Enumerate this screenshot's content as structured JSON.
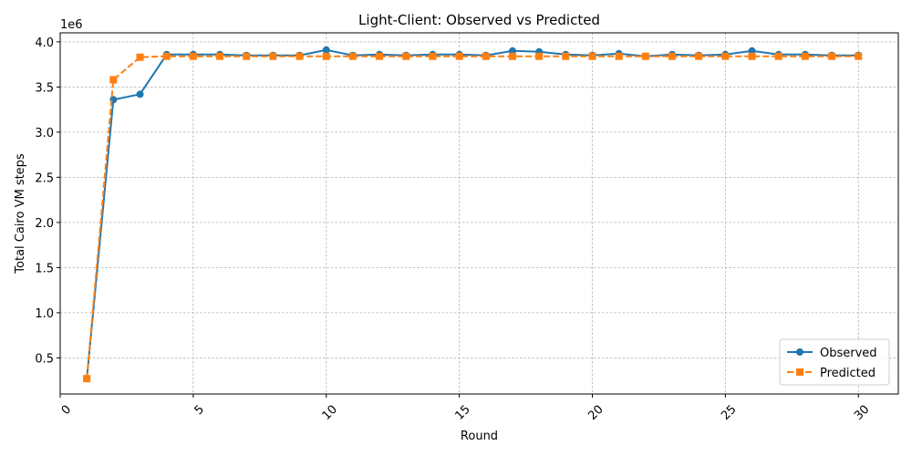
{
  "chart_data": {
    "type": "line",
    "title": "Light-Client: Observed vs Predicted",
    "xlabel": "Round",
    "ylabel": "Total Cairo VM steps",
    "y_offset_label": "1e6",
    "xlim": [
      0,
      31.5
    ],
    "ylim": [
      0.1,
      4.1
    ],
    "y_scale_factor": 1000000,
    "x_ticks": [
      0,
      5,
      10,
      15,
      20,
      25,
      30
    ],
    "y_ticks": [
      0.5,
      1.0,
      1.5,
      2.0,
      2.5,
      3.0,
      3.5,
      4.0
    ],
    "y_tick_labels": [
      "0.5",
      "1.0",
      "1.5",
      "2.0",
      "2.5",
      "3.0",
      "3.5",
      "4.0"
    ],
    "x_tick_rotation_deg": 45,
    "grid": true,
    "legend_position": "lower-right",
    "x": [
      1,
      2,
      3,
      4,
      5,
      6,
      7,
      8,
      9,
      10,
      11,
      12,
      13,
      14,
      15,
      16,
      17,
      18,
      19,
      20,
      21,
      22,
      23,
      24,
      25,
      26,
      27,
      28,
      29,
      30
    ],
    "series": [
      {
        "name": "Observed",
        "color": "#1f77b4",
        "linestyle": "solid",
        "marker": "circle",
        "values": [
          0.27,
          3.36,
          3.42,
          3.86,
          3.86,
          3.86,
          3.85,
          3.85,
          3.85,
          3.91,
          3.85,
          3.86,
          3.85,
          3.86,
          3.86,
          3.85,
          3.9,
          3.89,
          3.86,
          3.85,
          3.87,
          3.84,
          3.86,
          3.85,
          3.86,
          3.9,
          3.86,
          3.86,
          3.85,
          3.85
        ]
      },
      {
        "name": "Predicted",
        "color": "#ff7f0e",
        "linestyle": "dashed",
        "marker": "square",
        "values": [
          0.27,
          3.58,
          3.83,
          3.84,
          3.84,
          3.84,
          3.84,
          3.84,
          3.84,
          3.84,
          3.84,
          3.84,
          3.84,
          3.84,
          3.84,
          3.84,
          3.84,
          3.84,
          3.84,
          3.84,
          3.84,
          3.84,
          3.84,
          3.84,
          3.84,
          3.84,
          3.84,
          3.84,
          3.84,
          3.84
        ]
      }
    ]
  }
}
